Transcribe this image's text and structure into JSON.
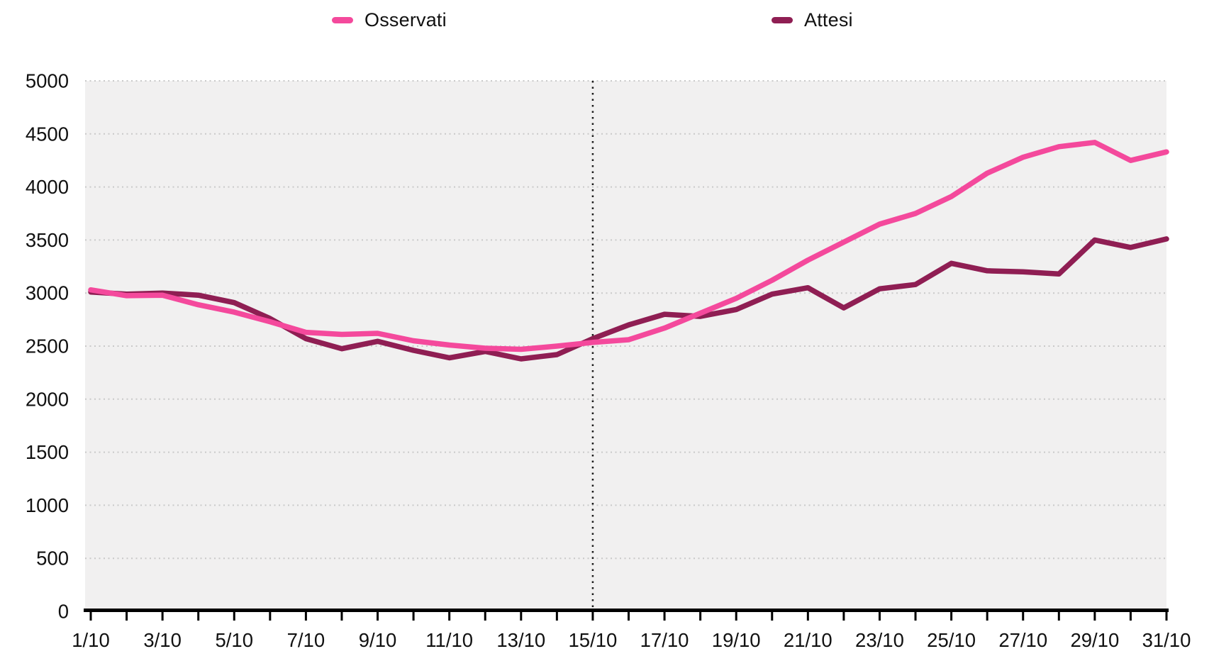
{
  "legend": {
    "items": [
      {
        "label": "Osservati",
        "color": "#f4499c"
      },
      {
        "label": "Attesi",
        "color": "#8f1e53"
      }
    ]
  },
  "chart_data": {
    "type": "line",
    "title": "",
    "xlabel": "",
    "ylabel": "",
    "categories": [
      "1/10",
      "2/10",
      "3/10",
      "4/10",
      "5/10",
      "6/10",
      "7/10",
      "8/10",
      "9/10",
      "10/10",
      "11/10",
      "12/10",
      "13/10",
      "14/10",
      "15/10",
      "16/10",
      "17/10",
      "18/10",
      "19/10",
      "20/10",
      "21/10",
      "22/10",
      "23/10",
      "24/10",
      "25/10",
      "26/10",
      "27/10",
      "28/10",
      "29/10",
      "30/10",
      "31/10"
    ],
    "x_tick_labels_shown": [
      "1/10",
      "3/10",
      "5/10",
      "7/10",
      "9/10",
      "11/10",
      "13/10",
      "15/10",
      "17/10",
      "19/10",
      "21/10",
      "23/10",
      "25/10",
      "27/10",
      "29/10",
      "31/10"
    ],
    "y_tick_labels": [
      "0",
      "500",
      "1000",
      "1500",
      "2000",
      "2500",
      "3000",
      "3500",
      "4000",
      "4500",
      "5000"
    ],
    "ylim": [
      0,
      5000
    ],
    "ytick_step": 500,
    "grid": "horizontal-dotted",
    "legend_position": "top",
    "plot_background": "#f1f0f0",
    "gridline_color": "#c9c9c9",
    "axis_color": "#000000",
    "annotations": [
      {
        "type": "vline",
        "x": "15/10",
        "style": "dotted",
        "color": "#1a1a1a"
      }
    ],
    "series": [
      {
        "name": "Osservati",
        "color": "#f4499c",
        "values": [
          3030,
          2975,
          2980,
          2890,
          2820,
          2730,
          2630,
          2610,
          2620,
          2550,
          2510,
          2480,
          2470,
          2500,
          2535,
          2560,
          2670,
          2810,
          2950,
          3120,
          3310,
          3480,
          3650,
          3750,
          3910,
          4130,
          4280,
          4380,
          4420,
          4250,
          4330
        ]
      },
      {
        "name": "Attesi",
        "color": "#8f1e53",
        "values": [
          3010,
          2990,
          3000,
          2980,
          2910,
          2760,
          2570,
          2475,
          2545,
          2460,
          2390,
          2450,
          2380,
          2420,
          2570,
          2700,
          2800,
          2780,
          2845,
          2990,
          3050,
          2860,
          3040,
          3080,
          3280,
          3210,
          3200,
          3180,
          3500,
          3430,
          3510
        ]
      }
    ]
  }
}
